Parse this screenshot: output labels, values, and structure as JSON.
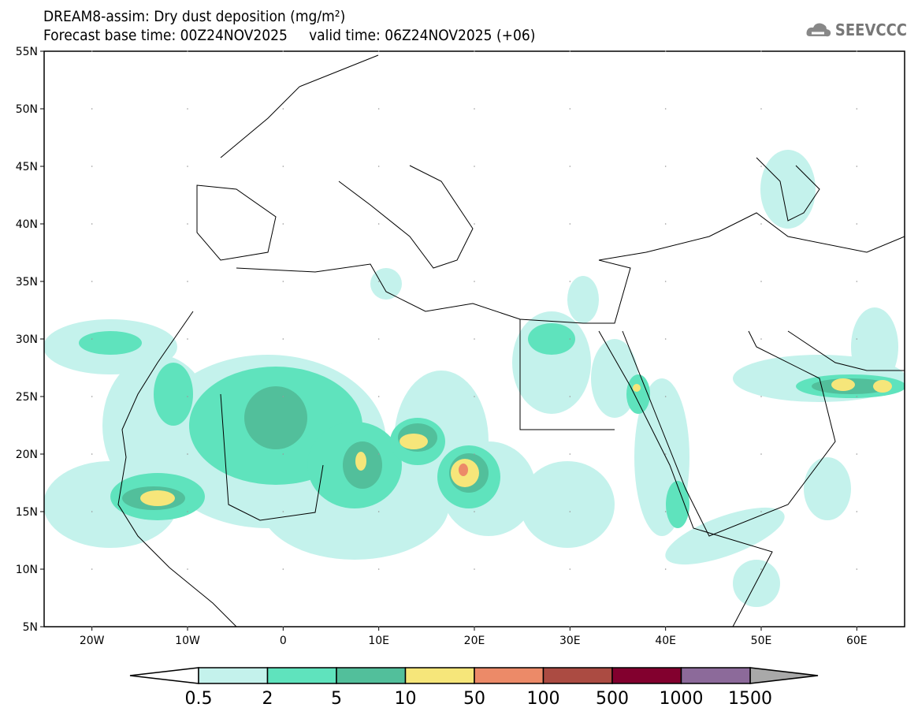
{
  "header": {
    "title": "DREAM8-assim: Dry dust deposition (mg/m²)",
    "base_time": "Forecast base time: 00Z24NOV2025",
    "valid_time": "valid time: 06Z24NOV2025 (+06)",
    "logo_text": "SEEVCCC"
  },
  "map": {
    "lon_range": [
      -25,
      65
    ],
    "lat_range": [
      5,
      55
    ],
    "lat_labels": [
      {
        "v": 55,
        "t": "55N"
      },
      {
        "v": 50,
        "t": "50N"
      },
      {
        "v": 45,
        "t": "45N"
      },
      {
        "v": 40,
        "t": "40N"
      },
      {
        "v": 35,
        "t": "35N"
      },
      {
        "v": 30,
        "t": "30N"
      },
      {
        "v": 25,
        "t": "25N"
      },
      {
        "v": 20,
        "t": "20N"
      },
      {
        "v": 15,
        "t": "15N"
      },
      {
        "v": 10,
        "t": "10N"
      },
      {
        "v": 5,
        "t": "5N"
      }
    ],
    "lon_labels": [
      {
        "v": -20,
        "t": "20W"
      },
      {
        "v": -10,
        "t": "10W"
      },
      {
        "v": 0,
        "t": "0"
      },
      {
        "v": 10,
        "t": "10E"
      },
      {
        "v": 20,
        "t": "20E"
      },
      {
        "v": 30,
        "t": "30E"
      },
      {
        "v": 40,
        "t": "40E"
      },
      {
        "v": 50,
        "t": "50E"
      },
      {
        "v": 60,
        "t": "60E"
      }
    ]
  },
  "colorbar": {
    "labels": [
      "0.5",
      "2",
      "5",
      "10",
      "50",
      "100",
      "500",
      "1000",
      "1500"
    ],
    "colors": [
      "#c4f2ec",
      "#5fe3bd",
      "#52bf9b",
      "#f6e67a",
      "#ec8a68",
      "#ab4b42",
      "#82002e",
      "#8c6a9a"
    ],
    "below_color": "#ffffff",
    "above_color": "#a9a9a9"
  }
}
